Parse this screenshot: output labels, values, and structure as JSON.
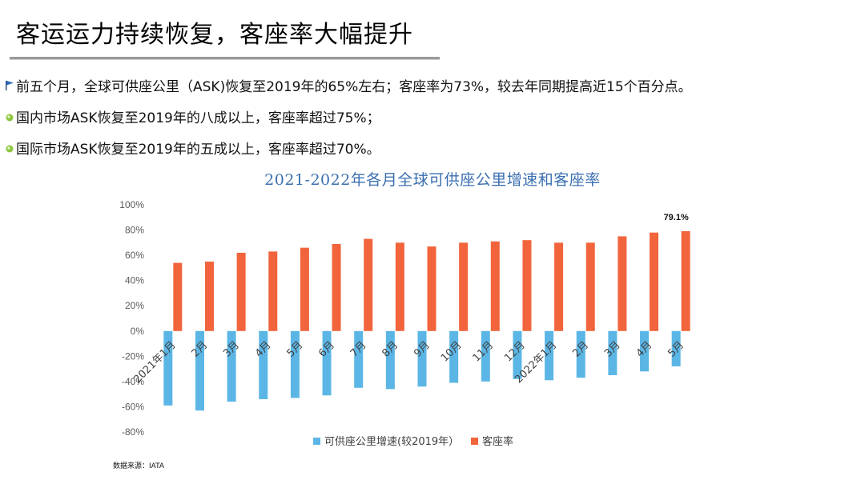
{
  "title": "客运运力持续恢复，客座率大幅提升",
  "bullets": [
    {
      "icon": "blue-flag-icon",
      "text": "前五个月，全球可供座公里（ASK)恢复至2019年的65%左右；客座率为73%，较去年同期提高近15个百分点。"
    },
    {
      "icon": "green-bullet-icon",
      "text": "国内市场ASK恢复至2019年的八成以上，客座率超过75%；"
    },
    {
      "icon": "green-bullet-icon",
      "text": "国际市场ASK恢复至2019年的五成以上，客座率超过70%。"
    }
  ],
  "source": "数据来源：IATA",
  "chart_data": {
    "type": "bar",
    "title": "2021-2022年各月全球可供座公里增速和客座率",
    "categories": [
      "2021年1月",
      "2月",
      "3月",
      "4月",
      "5月",
      "6月",
      "7月",
      "8月",
      "9月",
      "10月",
      "11月",
      "12月",
      "2022年1月",
      "2月",
      "3月",
      "4月",
      "5月"
    ],
    "series": [
      {
        "name": "可供座公里增速(较2019年）",
        "color": "#5bb6e6",
        "values": [
          -59,
          -63,
          -56,
          -54,
          -53,
          -51,
          -45,
          -46,
          -44,
          -41,
          -40,
          -38,
          -39,
          -37,
          -35,
          -32,
          -28
        ]
      },
      {
        "name": "客座率",
        "color": "#f1643c",
        "values": [
          54,
          55,
          62,
          63,
          66,
          69,
          73,
          70,
          67,
          70,
          71,
          72,
          70,
          70,
          75,
          78,
          79.1
        ]
      }
    ],
    "ylim": [
      -80,
      100
    ],
    "yticks": [
      "100%",
      "80%",
      "60%",
      "40%",
      "20%",
      "0%",
      "-20%",
      "-40%",
      "-60%",
      "-80%"
    ],
    "ytick_values": [
      100,
      80,
      60,
      40,
      20,
      0,
      -20,
      -40,
      -60,
      -80
    ],
    "annotations": [
      {
        "category_index": 16,
        "series": "客座率",
        "label": "79.1%"
      }
    ],
    "legend": "bottom"
  },
  "colors": {
    "title_rule": "#9a9a9a",
    "chart_title": "#3b6fb0"
  }
}
